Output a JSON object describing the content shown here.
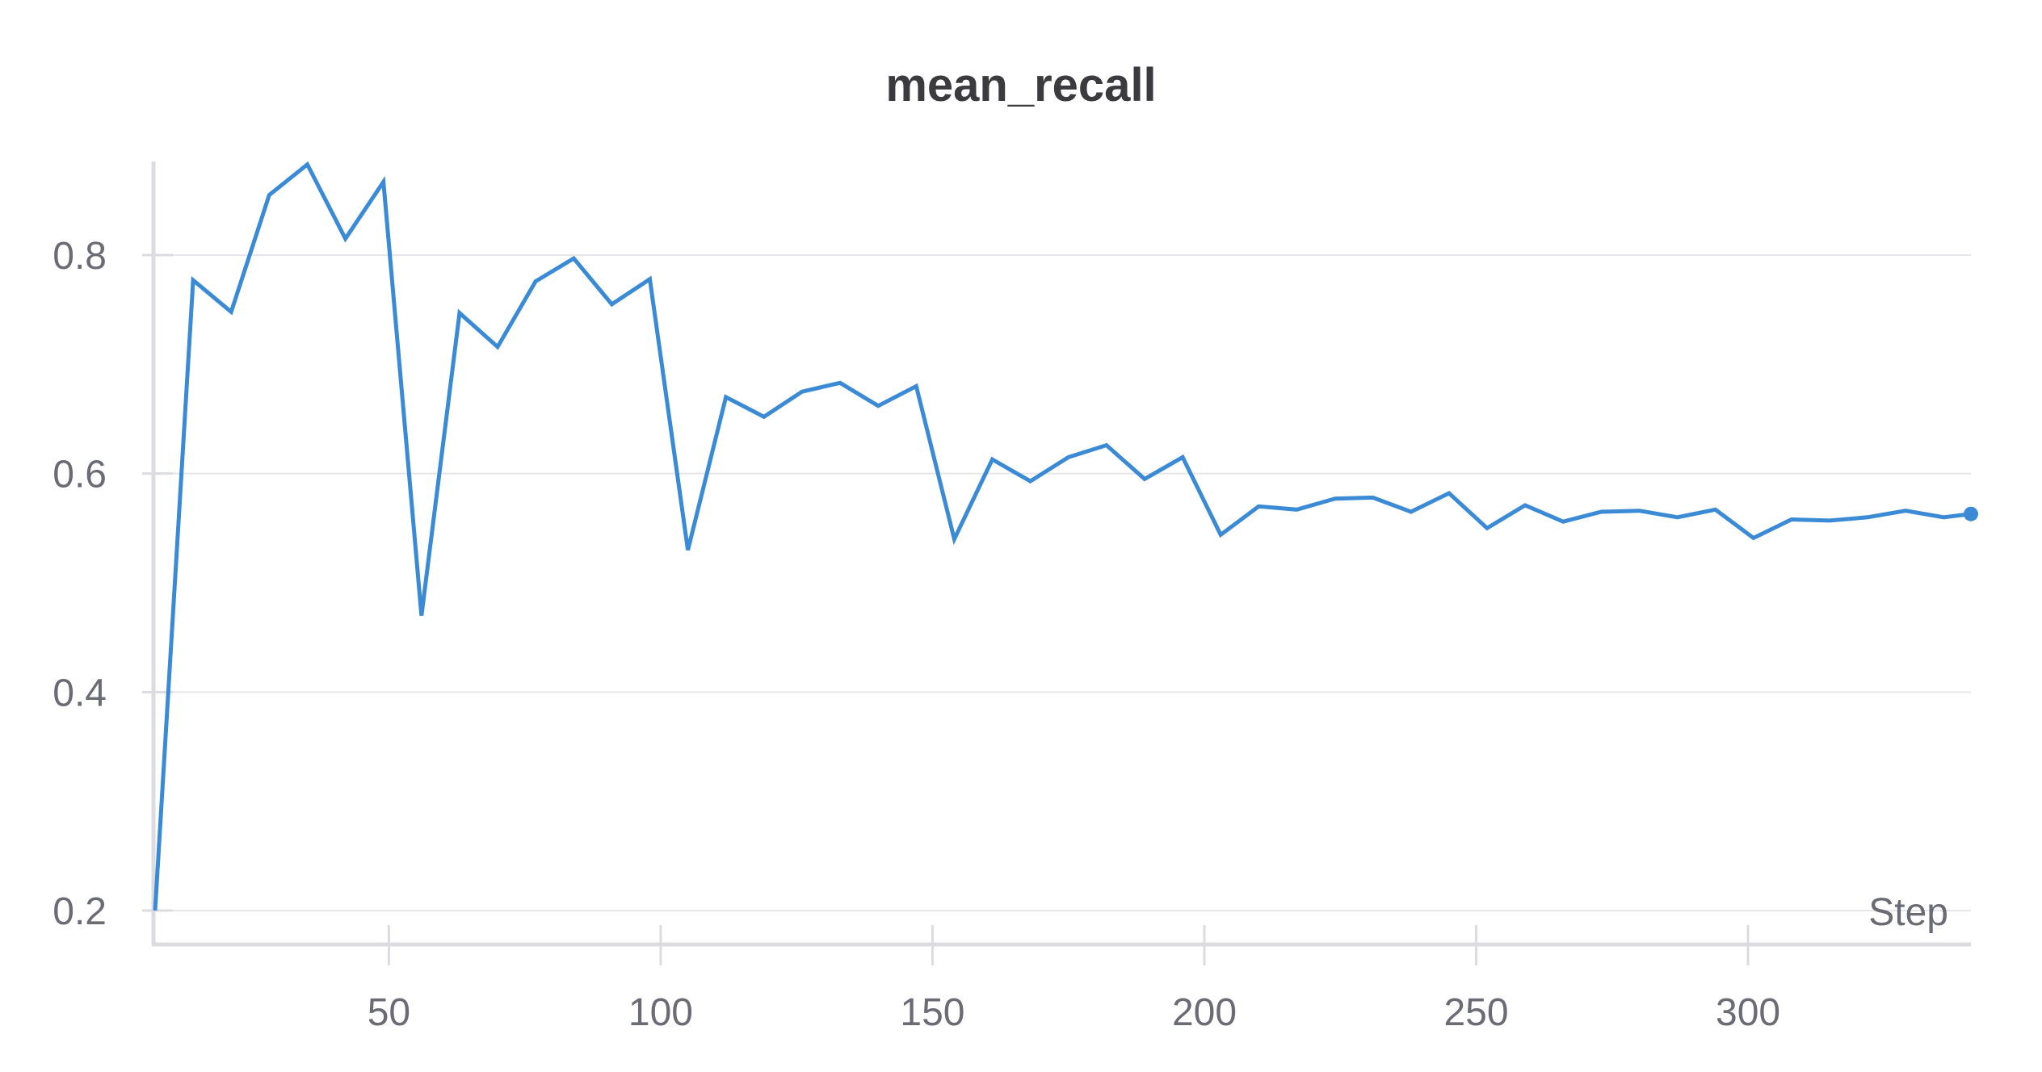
{
  "chart_data": {
    "type": "line",
    "title": "mean_recall",
    "xlabel": "Step",
    "ylabel": "",
    "xlim": [
      7,
      341
    ],
    "ylim": [
      0.19,
      0.875
    ],
    "x_ticks": [
      50,
      100,
      150,
      200,
      250,
      300
    ],
    "y_ticks": [
      0.2,
      0.4,
      0.6,
      0.8
    ],
    "grid": "horizontal",
    "legend": "none",
    "colors": {
      "series": "#3a8ad6",
      "grid": "#e6e6ea",
      "axis": "#dcdce0",
      "text": "#6b6b76"
    },
    "series": [
      {
        "x": [
          7,
          14,
          21,
          28,
          35,
          42,
          49,
          56,
          63,
          70,
          77,
          84,
          91,
          98,
          105,
          112,
          119,
          126,
          133,
          140,
          147,
          154,
          161,
          168,
          175,
          182,
          189,
          196,
          203,
          210,
          217,
          224,
          231,
          238,
          245,
          252,
          259,
          266,
          273,
          280,
          287,
          294,
          301,
          308,
          315,
          322,
          329,
          336,
          341
        ],
        "y": [
          0.2,
          0.777,
          0.748,
          0.855,
          0.883,
          0.815,
          0.867,
          0.47,
          0.747,
          0.716,
          0.776,
          0.797,
          0.755,
          0.778,
          0.53,
          0.67,
          0.652,
          0.675,
          0.683,
          0.662,
          0.68,
          0.54,
          0.613,
          0.593,
          0.615,
          0.626,
          0.595,
          0.615,
          0.544,
          0.57,
          0.567,
          0.577,
          0.578,
          0.565,
          0.582,
          0.55,
          0.571,
          0.556,
          0.565,
          0.566,
          0.56,
          0.567,
          0.541,
          0.558,
          0.557,
          0.56,
          0.566,
          0.56,
          0.563
        ]
      }
    ]
  }
}
